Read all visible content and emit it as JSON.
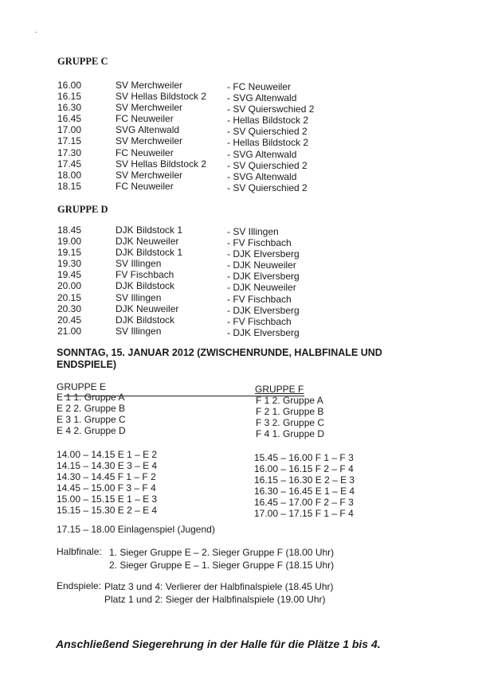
{
  "gruppe_c": {
    "title": "GRUPPE C",
    "matches": [
      {
        "time": "16.00",
        "home": "SV Merchweiler",
        "away": "- FC Neuweiler"
      },
      {
        "time": "16.15",
        "home": "SV Hellas Bildstock 2",
        "away": "- SVG Altenwald"
      },
      {
        "time": "16.30",
        "home": "SV Merchweiler",
        "away": "- SV Quierswchied 2"
      },
      {
        "time": "16.45",
        "home": "FC Neuweiler",
        "away": "- Hellas Bildstock 2"
      },
      {
        "time": "17.00",
        "home": "SVG Altenwald",
        "away": "- SV Quierschied 2"
      },
      {
        "time": "17.15",
        "home": "SV Merchweiler",
        "away": "- Hellas Bildstock 2"
      },
      {
        "time": "17.30",
        "home": "FC Neuweiler",
        "away": "- SVG Altenwald"
      },
      {
        "time": "17.45",
        "home": "SV Hellas Bildstock 2",
        "away": "- SV Quierschied 2"
      },
      {
        "time": "18.00",
        "home": "SV Merchweiler",
        "away": "- SVG Altenwald"
      },
      {
        "time": "18.15",
        "home": "FC Neuweiler",
        "away": "- SV Quierschied 2"
      }
    ]
  },
  "gruppe_d": {
    "title": "GRUPPE D",
    "matches": [
      {
        "time": "18.45",
        "home": "DJK Bildstock 1",
        "away": "- SV Illingen"
      },
      {
        "time": "19.00",
        "home": "DJK Neuweiler",
        "away": "- FV Fischbach"
      },
      {
        "time": "19.15",
        "home": "DJK Bildstock 1",
        "away": "- DJK Elversberg"
      },
      {
        "time": "19.30",
        "home": "SV Illingen",
        "away": "- DJK Neuweiler"
      },
      {
        "time": "19.45",
        "home": "FV Fischbach",
        "away": "- DJK Elversberg"
      },
      {
        "time": "20.00",
        "home": "DJK Bildstock",
        "away": "- DJK Neuweiler"
      },
      {
        "time": "20.15",
        "home": "SV Illingen",
        "away": "- FV Fischbach"
      },
      {
        "time": "20.30",
        "home": "DJK Neuweiler",
        "away": "- DJK Elversberg"
      },
      {
        "time": "20.45",
        "home": "DJK Bildstock",
        "away": "- FV Fischbach"
      },
      {
        "time": "21.00",
        "home": "SV Illingen",
        "away": "- DJK Elversberg"
      }
    ]
  },
  "sunday": {
    "heading_line1": "SONNTAG, 15. JANUAR 2012 (ZWISCHENRUNDE, HALBFINALE UND",
    "heading_line2": "ENDSPIELE)",
    "gruppe_e": {
      "title": "GRUPPE E",
      "teams": [
        "E 1 1. Gruppe A",
        "E 2 2. Gruppe B",
        "E 3 1. Gruppe C",
        "E 4 2. Gruppe D"
      ],
      "matches": [
        "14.00 – 14.15 E 1 – E 2",
        "14.15 – 14.30 E 3 – E 4",
        "14.30 – 14.45 F 1 – F 2",
        "14.45 – 15.00 F 3 – F 4",
        "15.00 – 15.15 E 1 – E 3",
        "15.15 – 15.30 E 2 – E 4"
      ]
    },
    "gruppe_f": {
      "title": "GRUPPE F",
      "teams": [
        "F 1 2. Gruppe A",
        "F 2 1. Gruppe B",
        "F 3 2. Gruppe C",
        "F 4 1. Gruppe D"
      ],
      "matches": [
        "15.45 – 16.00 F 1 – F 3",
        "16.00 – 16.15 F 2 – F 4",
        "16.15 – 16.30 E 2 – E 3",
        "16.30 – 16.45 E 1 – E 4",
        "16.45 – 17.00 F 2 – F 3",
        "17.00 – 17.15 F 1 – F 4"
      ]
    },
    "einlage": "17.15 – 18.00 Einlagenspiel (Jugend)",
    "halbfinale_label": "Halbfinale:",
    "halbfinale": [
      "1. Sieger Gruppe E – 2. Sieger Gruppe F (18.00 Uhr)",
      "2. Sieger Gruppe E – 1. Sieger Gruppe F (18.15 Uhr)"
    ],
    "endspiele_label": "Endspiele:",
    "endspiele": [
      "Platz 3 und 4: Verlierer der Halbfinalspiele (18.45 Uhr)",
      "Platz 1 und 2: Sieger der Halbfinalspiele (19.00 Uhr)"
    ],
    "closing": "Anschließend Siegerehrung in der Halle für die Plätze 1 bis 4."
  }
}
